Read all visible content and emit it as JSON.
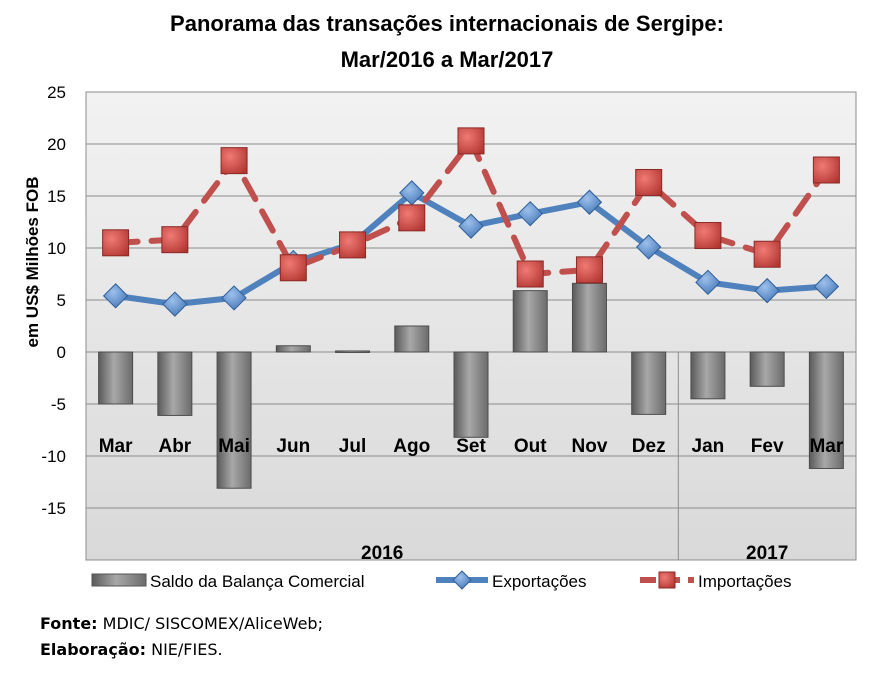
{
  "chart_data": {
    "type": "bar+line",
    "title_line1": "Panorama das transações internacionais de Sergipe:",
    "title_line2": "Mar/2016 a Mar/2017",
    "ylabel": "em US$ Milhões FOB",
    "ylim": [
      -20,
      25
    ],
    "yticks": [
      25,
      20,
      15,
      10,
      5,
      0,
      -5,
      -10,
      -15
    ],
    "grid": true,
    "categories": [
      "Mar",
      "Abr",
      "Mai",
      "Jun",
      "Jul",
      "Ago",
      "Set",
      "Out",
      "Nov",
      "Dez",
      "Jan",
      "Fev",
      "Mar"
    ],
    "year_groups": [
      {
        "label": "2016",
        "start": 0,
        "end": 9
      },
      {
        "label": "2017",
        "start": 10,
        "end": 12
      }
    ],
    "series": [
      {
        "name": "Saldo da Balança Comercial",
        "kind": "bar",
        "color": "#7f7f7f",
        "values": [
          -5.0,
          -6.1,
          -13.1,
          0.6,
          0.1,
          2.5,
          -8.2,
          5.9,
          6.6,
          -6.0,
          -4.5,
          -3.3,
          -11.2
        ]
      },
      {
        "name": "Exportações",
        "kind": "line",
        "color": "#4f81bd",
        "values": [
          5.4,
          4.6,
          5.2,
          8.6,
          10.4,
          15.3,
          12.1,
          13.3,
          14.4,
          10.1,
          6.7,
          5.9,
          6.3
        ]
      },
      {
        "name": "Importações",
        "kind": "line",
        "color": "#c0504d",
        "dashed": true,
        "values": [
          10.5,
          10.8,
          18.4,
          8.1,
          10.3,
          12.9,
          20.3,
          7.5,
          7.9,
          16.3,
          11.2,
          9.4,
          17.5
        ]
      }
    ],
    "legend_position": "bottom"
  },
  "footer": {
    "source_label": "Fonte:",
    "source_text": " MDIC/ SISCOMEX/AliceWeb;",
    "credit_label": "Elaboração:",
    "credit_text": " NIE/FIES."
  }
}
